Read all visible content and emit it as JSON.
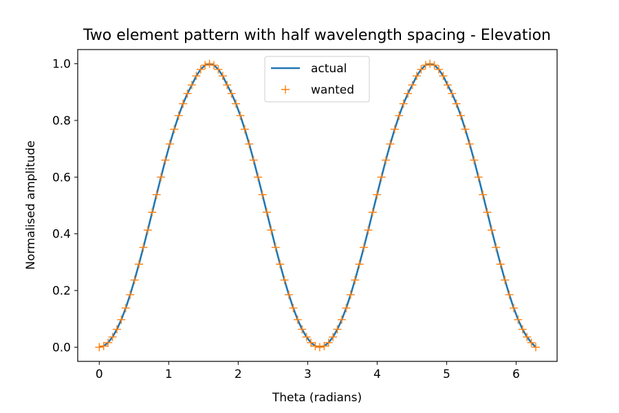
{
  "chart_data": {
    "type": "line",
    "title": "Two element pattern with half wavelength spacing - Elevation",
    "xlabel": "Theta (radians)",
    "ylabel": "Normalised amplitude",
    "xlim": [
      -0.31,
      6.59
    ],
    "ylim": [
      -0.05,
      1.05
    ],
    "x_ticks": [
      0,
      1,
      2,
      3,
      4,
      5,
      6
    ],
    "x_tick_labels": [
      "0",
      "1",
      "2",
      "3",
      "4",
      "5",
      "6"
    ],
    "y_ticks": [
      0.0,
      0.2,
      0.4,
      0.6,
      0.8,
      1.0
    ],
    "y_tick_labels": [
      "0.0",
      "0.2",
      "0.4",
      "0.6",
      "0.8",
      "1.0"
    ],
    "grid": false,
    "legend_position": "top-center",
    "colors": {
      "actual": "#1f77b4",
      "wanted": "#ff7f0e"
    },
    "x": [
      0.0,
      0.0635,
      0.1269,
      0.1904,
      0.2539,
      0.3173,
      0.3808,
      0.4443,
      0.5077,
      0.5712,
      0.6347,
      0.6981,
      0.7616,
      0.8251,
      0.8885,
      0.952,
      1.0155,
      1.0789,
      1.1424,
      1.2059,
      1.2693,
      1.3328,
      1.3963,
      1.4597,
      1.5232,
      1.5867,
      1.6501,
      1.7136,
      1.7771,
      1.8405,
      1.904,
      1.9675,
      2.0309,
      2.0944,
      2.1579,
      2.2213,
      2.2848,
      2.3483,
      2.4117,
      2.4752,
      2.5387,
      2.6021,
      2.6656,
      2.7291,
      2.7925,
      2.856,
      2.9195,
      2.9829,
      3.0464,
      3.1099,
      3.1733,
      3.2368,
      3.3003,
      3.3637,
      3.4272,
      3.4907,
      3.5541,
      3.6176,
      3.6811,
      3.7445,
      3.808,
      3.8715,
      3.9349,
      3.9984,
      4.0619,
      4.1253,
      4.1888,
      4.2523,
      4.3157,
      4.3792,
      4.4427,
      4.5061,
      4.5696,
      4.6331,
      4.6965,
      4.76,
      4.8235,
      4.8869,
      4.9504,
      5.0139,
      5.0773,
      5.1408,
      5.2043,
      5.2677,
      5.3312,
      5.3947,
      5.4581,
      5.5216,
      5.5851,
      5.6485,
      5.712,
      5.7755,
      5.8389,
      5.9024,
      5.9659,
      6.0293,
      6.0928,
      6.1563,
      6.2197,
      6.2832
    ],
    "series": [
      {
        "name": "actual",
        "style": "line",
        "values": [
          0.0,
          0.004,
          0.016,
          0.036,
          0.063,
          0.097,
          0.138,
          0.185,
          0.237,
          0.293,
          0.352,
          0.413,
          0.476,
          0.538,
          0.6,
          0.66,
          0.717,
          0.769,
          0.817,
          0.859,
          0.895,
          0.925,
          0.957,
          0.98,
          0.995,
          1.0,
          0.995,
          0.98,
          0.957,
          0.925,
          0.895,
          0.859,
          0.817,
          0.769,
          0.717,
          0.66,
          0.6,
          0.538,
          0.476,
          0.413,
          0.352,
          0.293,
          0.237,
          0.185,
          0.138,
          0.097,
          0.063,
          0.036,
          0.016,
          0.004,
          0.0,
          0.004,
          0.016,
          0.036,
          0.063,
          0.097,
          0.138,
          0.185,
          0.237,
          0.293,
          0.352,
          0.413,
          0.476,
          0.538,
          0.6,
          0.66,
          0.717,
          0.769,
          0.817,
          0.859,
          0.895,
          0.925,
          0.957,
          0.98,
          0.995,
          1.0,
          0.995,
          0.98,
          0.957,
          0.925,
          0.895,
          0.859,
          0.817,
          0.769,
          0.717,
          0.66,
          0.6,
          0.538,
          0.476,
          0.413,
          0.352,
          0.293,
          0.237,
          0.185,
          0.138,
          0.097,
          0.063,
          0.036,
          0.016,
          0.0
        ]
      },
      {
        "name": "wanted",
        "style": "plus-markers",
        "values": [
          0.0,
          0.004,
          0.016,
          0.036,
          0.063,
          0.097,
          0.138,
          0.185,
          0.237,
          0.293,
          0.352,
          0.413,
          0.476,
          0.538,
          0.6,
          0.66,
          0.717,
          0.769,
          0.817,
          0.859,
          0.895,
          0.925,
          0.957,
          0.98,
          0.995,
          1.0,
          0.995,
          0.98,
          0.957,
          0.925,
          0.895,
          0.859,
          0.817,
          0.769,
          0.717,
          0.66,
          0.6,
          0.538,
          0.476,
          0.413,
          0.352,
          0.293,
          0.237,
          0.185,
          0.138,
          0.097,
          0.063,
          0.036,
          0.016,
          0.004,
          0.0,
          0.004,
          0.016,
          0.036,
          0.063,
          0.097,
          0.138,
          0.185,
          0.237,
          0.293,
          0.352,
          0.413,
          0.476,
          0.538,
          0.6,
          0.66,
          0.717,
          0.769,
          0.817,
          0.859,
          0.895,
          0.925,
          0.957,
          0.98,
          0.995,
          1.0,
          0.995,
          0.98,
          0.957,
          0.925,
          0.895,
          0.859,
          0.817,
          0.769,
          0.717,
          0.66,
          0.6,
          0.538,
          0.476,
          0.413,
          0.352,
          0.293,
          0.237,
          0.185,
          0.138,
          0.097,
          0.063,
          0.036,
          0.016,
          0.0
        ]
      }
    ]
  }
}
